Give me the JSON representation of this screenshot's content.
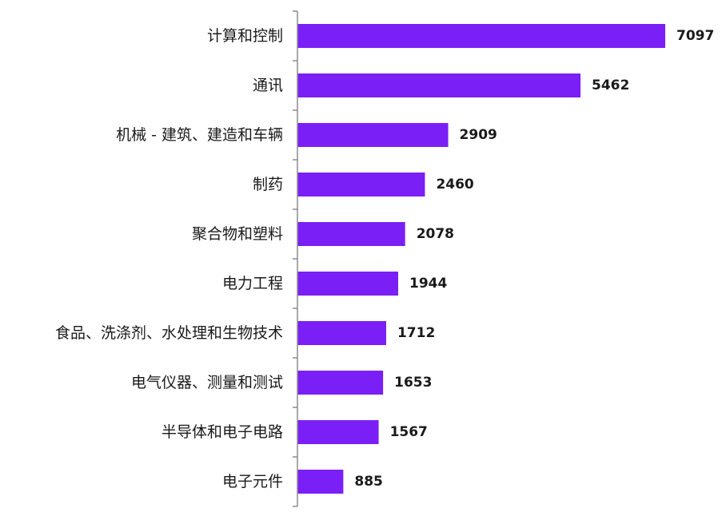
{
  "chart_data": {
    "type": "bar",
    "orientation": "horizontal",
    "categories": [
      "计算和控制",
      "通讯",
      "机械 - 建筑、建造和车辆",
      "制药",
      "聚合物和塑料",
      "电力工程",
      "食品、洗涤剂、水处理和生物技术",
      "电气仪器、测量和测试",
      "半导体和电子电路",
      "电子元件"
    ],
    "values": [
      7097,
      5462,
      2909,
      2460,
      2078,
      1944,
      1712,
      1653,
      1567,
      885
    ],
    "data_labels": [
      "7097",
      "5462",
      "2909",
      "2460",
      "2078",
      "1944",
      "1712",
      "1653",
      "1567",
      "885"
    ],
    "xlim": [
      0,
      7097
    ],
    "title": "",
    "xlabel": "",
    "ylabel": "",
    "grid": false,
    "legend": "none",
    "bar_color": "#7A1FF5",
    "axis_color": "#8c8c8c"
  }
}
